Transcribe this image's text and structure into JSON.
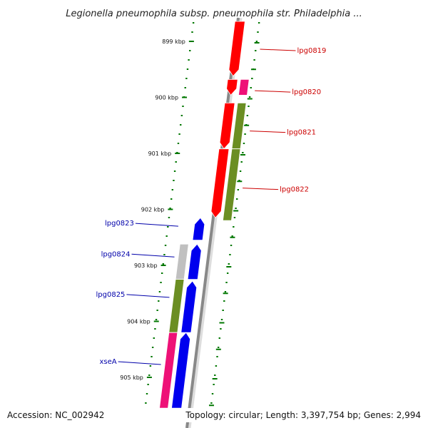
{
  "title": "Legionella pneumophila subsp. pneumophila str. Philadelphia ...",
  "accession": "Accession: NC_002942",
  "summary": "Topology: circular; Length: 3,397,754 bp; Genes: 2,994",
  "ticks": [
    {
      "label": "899 kbp",
      "pos": 0.0
    },
    {
      "label": "900 kbp",
      "pos": 1.0
    },
    {
      "label": "901 kbp",
      "pos": 2.0
    },
    {
      "label": "902 kbp",
      "pos": 3.0
    },
    {
      "label": "903 kbp",
      "pos": 4.0
    },
    {
      "label": "904 kbp",
      "pos": 5.0
    },
    {
      "label": "905 kbp",
      "pos": 6.0
    }
  ],
  "forward_genes": [
    {
      "label": "lpg0819",
      "color": "#ff0000",
      "start": -0.45,
      "end": 0.62,
      "label_pos": 0.14
    },
    {
      "label": "lpg0820",
      "color": "#ff0000",
      "start": 0.68,
      "end": 0.96,
      "label_pos": 0.88
    },
    {
      "label": "lpg0821",
      "color": "#ff0000",
      "start": 1.1,
      "end": 1.92,
      "label_pos": 1.6
    },
    {
      "label": "lpg0822",
      "color": "#ff0000",
      "start": 1.92,
      "end": 3.15,
      "label_pos": 2.62
    }
  ],
  "forward_cog": [
    {
      "color": "#ee1177",
      "start": 0.68,
      "end": 0.96
    },
    {
      "color": "#6b8e23",
      "start": 1.1,
      "end": 1.92
    },
    {
      "color": "#6b8e23",
      "start": 1.92,
      "end": 3.2
    }
  ],
  "reverse_genes": [
    {
      "label": "lpg0823",
      "color": "#0000ee",
      "start": 3.15,
      "end": 3.55,
      "label_pos": 3.25
    },
    {
      "label": "lpg0824",
      "color": "#0000ee",
      "start": 3.62,
      "end": 4.25,
      "label_pos": 3.8
    },
    {
      "label": "lpg0825",
      "color": "#0000ee",
      "start": 4.28,
      "end": 5.2,
      "label_pos": 4.52
    },
    {
      "label": "xseA",
      "color": "#0000ee",
      "start": 5.2,
      "end": 6.55,
      "label_pos": 5.72
    }
  ],
  "reverse_cog": [
    {
      "color": "#c0c0c0",
      "start": 3.62,
      "end": 4.25
    },
    {
      "color": "#6b8e23",
      "start": 4.25,
      "end": 5.2
    },
    {
      "color": "#ee1177",
      "start": 5.2,
      "end": 6.55
    }
  ],
  "colors": {
    "forward_label": "#cc0000",
    "reverse_label": "#0000aa",
    "tick": "#007700",
    "backbone": "#888888"
  }
}
